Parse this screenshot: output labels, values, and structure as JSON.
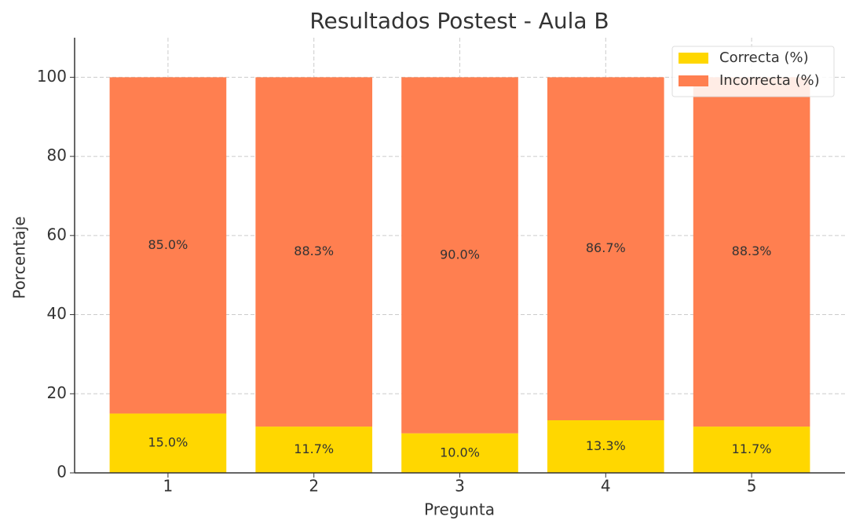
{
  "chart_data": {
    "type": "stacked_bar",
    "title": "Resultados Postest - Aula B",
    "x_label": "Pregunta",
    "y_label": "Porcentaje",
    "categories": [
      "1",
      "2",
      "3",
      "4",
      "5"
    ],
    "series": [
      {
        "name": "Correcta (%)",
        "color": "#ffd700",
        "values": [
          15.0,
          11.7,
          10.0,
          13.3,
          11.7
        ],
        "value_labels": [
          "15.0%",
          "11.7%",
          "10.0%",
          "13.3%",
          "11.7%"
        ]
      },
      {
        "name": "Incorrecta (%)",
        "color": "#ff7f50",
        "values": [
          85.0,
          88.3,
          90.0,
          86.7,
          88.3
        ],
        "value_labels": [
          "85.0%",
          "88.3%",
          "90.0%",
          "86.7%",
          "88.3%"
        ]
      }
    ],
    "ylim": [
      0,
      110
    ],
    "yticks": [
      0,
      20,
      40,
      60,
      80,
      100
    ],
    "grid": true,
    "legend": "upper right"
  }
}
